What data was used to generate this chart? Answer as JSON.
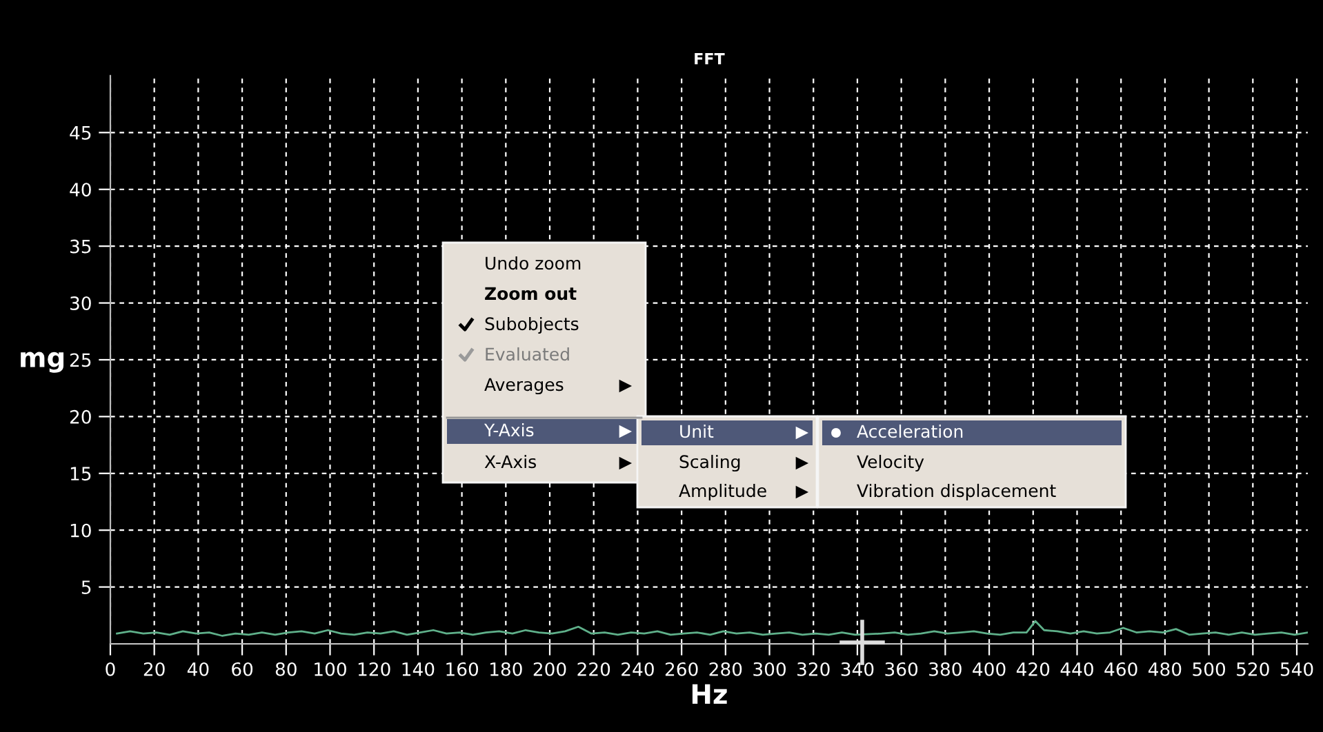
{
  "chart_data": {
    "type": "line",
    "title": "FFT",
    "xlabel": "Hz",
    "ylabel": "mg",
    "x": [
      3,
      9,
      15,
      21,
      27,
      33,
      39,
      45,
      51,
      57,
      63,
      69,
      75,
      81,
      87,
      93,
      99,
      105,
      111,
      117,
      123,
      129,
      135,
      141,
      147,
      153,
      159,
      165,
      171,
      177,
      183,
      189,
      195,
      201,
      207,
      213,
      219,
      225,
      231,
      237,
      243,
      249,
      255,
      261,
      267,
      273,
      279,
      285,
      291,
      297,
      303,
      309,
      315,
      321,
      327,
      333,
      339,
      351,
      357,
      363,
      369,
      375,
      381,
      387,
      393,
      399,
      405,
      411,
      417,
      421,
      425,
      431,
      437,
      443,
      449,
      455,
      461,
      467,
      473,
      479,
      485,
      491,
      497,
      503,
      509,
      515,
      521,
      527,
      533,
      539,
      545
    ],
    "series": [
      {
        "color": "#5fb08a",
        "values": [
          0.9,
          1.1,
          0.9,
          1.0,
          0.8,
          1.1,
          0.9,
          1.0,
          0.7,
          0.9,
          0.8,
          1.0,
          0.8,
          1.0,
          1.1,
          0.9,
          1.2,
          0.9,
          0.8,
          1.0,
          0.9,
          1.1,
          0.8,
          1.0,
          1.2,
          0.9,
          1.0,
          0.8,
          1.0,
          1.1,
          0.9,
          1.2,
          1.0,
          0.9,
          1.1,
          1.5,
          0.9,
          1.0,
          0.8,
          1.0,
          0.9,
          1.1,
          0.8,
          0.9,
          1.0,
          0.8,
          1.1,
          0.9,
          1.0,
          0.8,
          0.9,
          1.0,
          0.8,
          0.9,
          0.8,
          1.0,
          0.8,
          0.9,
          1.0,
          0.8,
          0.9,
          1.1,
          0.9,
          1.0,
          1.1,
          0.9,
          0.8,
          1.0,
          1.0,
          2.0,
          1.2,
          1.1,
          0.9,
          1.1,
          0.9,
          1.0,
          1.4,
          1.0,
          1.1,
          1.0,
          1.3,
          0.8,
          0.9,
          1.0,
          0.8,
          1.0,
          0.8,
          0.9,
          1.0,
          0.8,
          1.0
        ]
      }
    ],
    "xlim": [
      0,
      545
    ],
    "ylim": [
      0,
      50
    ],
    "xticks": [
      0,
      20,
      40,
      60,
      80,
      100,
      120,
      140,
      160,
      180,
      200,
      220,
      240,
      260,
      280,
      300,
      320,
      340,
      360,
      380,
      400,
      420,
      440,
      460,
      480,
      500,
      520,
      540
    ],
    "yticks": [
      5,
      10,
      15,
      20,
      25,
      30,
      35,
      40,
      45
    ],
    "grid": true,
    "line_style": "solid",
    "marker": "none",
    "annotations": [
      "Undo zoom",
      "Zoom out",
      "Subobjects",
      "Evaluated",
      "Averages",
      "Y-Axis",
      "X-Axis",
      "Unit",
      "Scaling",
      "Amplitude",
      "Acceleration",
      "Velocity",
      "Vibration displacement"
    ]
  }
}
